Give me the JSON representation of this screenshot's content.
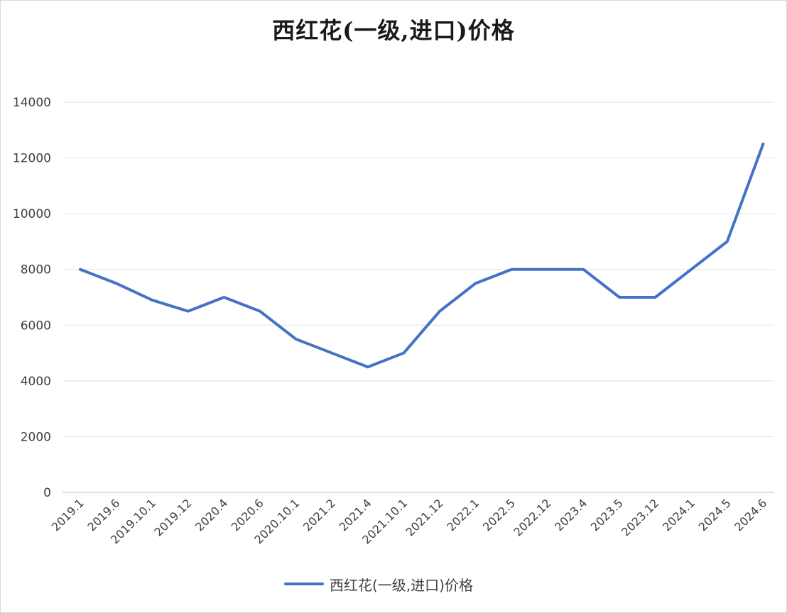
{
  "chart_data": {
    "type": "line",
    "title": "西红花(一级,进口)价格",
    "xlabel": "",
    "ylabel": "",
    "ylim": [
      0,
      14000
    ],
    "yticks": [
      0,
      2000,
      4000,
      6000,
      8000,
      10000,
      12000,
      14000
    ],
    "grid": true,
    "legend_position": "bottom",
    "categories": [
      "2019.1",
      "2019.6",
      "2019.10.1",
      "2019.12",
      "2020.4",
      "2020.6",
      "2020.10.1",
      "2021.2",
      "2021.4",
      "2021.10.1",
      "2021.12",
      "2022.1",
      "2022.5",
      "2022.12",
      "2023.4",
      "2023.5",
      "2023.12",
      "2024.1",
      "2024.5",
      "2024.6"
    ],
    "series": [
      {
        "name": "西红花(一级,进口)价格",
        "color": "#4472c4",
        "values": [
          8000,
          7500,
          6900,
          6500,
          7000,
          6500,
          5500,
          5000,
          4500,
          5000,
          6500,
          7500,
          8000,
          8000,
          8000,
          7000,
          7000,
          8000,
          9000,
          12500
        ]
      }
    ]
  }
}
